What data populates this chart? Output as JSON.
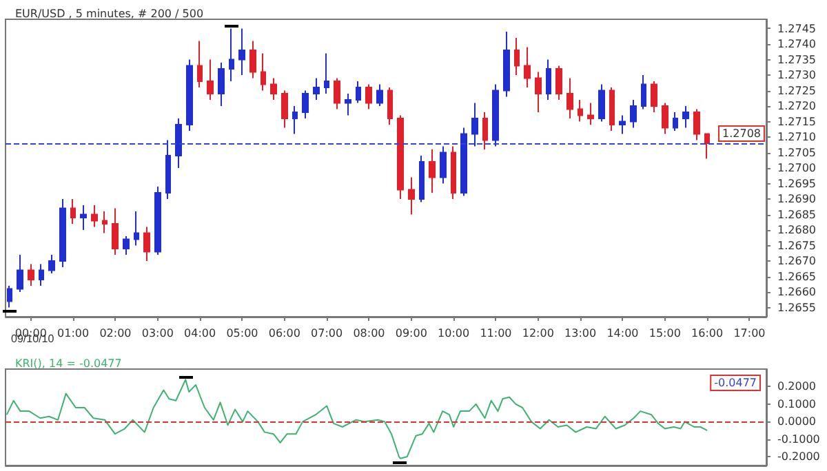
{
  "chart_data": [
    {
      "type": "candlestick",
      "title": "EUR/USD , 5 minutes, # 200 / 500",
      "x": [
        -0.5,
        -0.25,
        0,
        0.25,
        0.5,
        0.75,
        1,
        1.25,
        1.5,
        1.75,
        2,
        2.25,
        2.5,
        2.75,
        3,
        3.25,
        3.5,
        3.75,
        4,
        4.25,
        4.5,
        4.75,
        5,
        5.25,
        5.5,
        5.75,
        6,
        6.25,
        6.5,
        6.75,
        7,
        7.25,
        7.5,
        7.75,
        8,
        8.25,
        8.5,
        8.75,
        9,
        9.25,
        9.5,
        9.75,
        10,
        10.25,
        10.5,
        10.75,
        11,
        11.25,
        11.5,
        11.75,
        12,
        12.25,
        12.5,
        12.75,
        13,
        13.25,
        13.5,
        13.75,
        14,
        14.25,
        14.5,
        14.75,
        15,
        15.25,
        15.5,
        15.75,
        16
      ],
      "ohlc": [
        [
          1.2657,
          1.2662,
          1.2655,
          1.2661
        ],
        [
          1.2661,
          1.2672,
          1.266,
          1.2667
        ],
        [
          1.2667,
          1.2669,
          1.2662,
          1.2664
        ],
        [
          1.2664,
          1.2669,
          1.2662,
          1.2667
        ],
        [
          1.2667,
          1.2672,
          1.2666,
          1.267
        ],
        [
          1.267,
          1.269,
          1.2668,
          1.2687
        ],
        [
          1.2687,
          1.269,
          1.2682,
          1.2684
        ],
        [
          1.2684,
          1.2688,
          1.268,
          1.2685
        ],
        [
          1.2685,
          1.2688,
          1.2681,
          1.2683
        ],
        [
          1.2683,
          1.2686,
          1.2679,
          1.2682
        ],
        [
          1.2682,
          1.2687,
          1.2672,
          1.2674
        ],
        [
          1.2674,
          1.2678,
          1.2672,
          1.2677
        ],
        [
          1.2677,
          1.2686,
          1.2675,
          1.2679
        ],
        [
          1.2679,
          1.2681,
          1.267,
          1.2673
        ],
        [
          1.2673,
          1.2694,
          1.2672,
          1.2692
        ],
        [
          1.2692,
          1.2709,
          1.269,
          1.2704
        ],
        [
          1.2704,
          1.2716,
          1.27,
          1.2714
        ],
        [
          1.2714,
          1.2735,
          1.2712,
          1.2733
        ],
        [
          1.2733,
          1.2741,
          1.2726,
          1.2728
        ],
        [
          1.2728,
          1.2735,
          1.2722,
          1.2724
        ],
        [
          1.2724,
          1.2734,
          1.272,
          1.2732
        ],
        [
          1.2732,
          1.2745,
          1.2728,
          1.2735
        ],
        [
          1.2735,
          1.2745,
          1.273,
          1.2738
        ],
        [
          1.2738,
          1.2741,
          1.2729,
          1.2731
        ],
        [
          1.2731,
          1.2737,
          1.2725,
          1.2727
        ],
        [
          1.2727,
          1.2729,
          1.2722,
          1.2724
        ],
        [
          1.2724,
          1.2725,
          1.2713,
          1.2716
        ],
        [
          1.2716,
          1.272,
          1.2711,
          1.2718
        ],
        [
          1.2718,
          1.2725,
          1.2716,
          1.2724
        ],
        [
          1.2724,
          1.2729,
          1.2722,
          1.2726
        ],
        [
          1.2726,
          1.2737,
          1.2724,
          1.2728
        ],
        [
          1.2728,
          1.2729,
          1.2719,
          1.2721
        ],
        [
          1.2721,
          1.2724,
          1.2717,
          1.2722
        ],
        [
          1.2722,
          1.2728,
          1.2721,
          1.2726
        ],
        [
          1.2726,
          1.2727,
          1.2719,
          1.2721
        ],
        [
          1.2721,
          1.2727,
          1.272,
          1.2725
        ],
        [
          1.2725,
          1.2726,
          1.2714,
          1.2716
        ],
        [
          1.2716,
          1.2717,
          1.269,
          1.2693
        ],
        [
          1.2693,
          1.2697,
          1.2685,
          1.269
        ],
        [
          1.269,
          1.2704,
          1.2689,
          1.2702
        ],
        [
          1.2702,
          1.2706,
          1.2692,
          1.2697
        ],
        [
          1.2697,
          1.2707,
          1.2695,
          1.2705
        ],
        [
          1.2705,
          1.2707,
          1.269,
          1.2692
        ],
        [
          1.2692,
          1.2713,
          1.2691,
          1.2711
        ],
        [
          1.2711,
          1.2721,
          1.2707,
          1.2716
        ],
        [
          1.2716,
          1.2718,
          1.2706,
          1.2709
        ],
        [
          1.2709,
          1.2727,
          1.2707,
          1.2725
        ],
        [
          1.2725,
          1.2744,
          1.2723,
          1.2738
        ],
        [
          1.2738,
          1.2742,
          1.273,
          1.2733
        ],
        [
          1.2733,
          1.2739,
          1.2726,
          1.2729
        ],
        [
          1.2729,
          1.2731,
          1.2718,
          1.2724
        ],
        [
          1.2724,
          1.2735,
          1.2722,
          1.2732
        ],
        [
          1.2732,
          1.2733,
          1.2722,
          1.2724
        ],
        [
          1.2724,
          1.2729,
          1.2716,
          1.2719
        ],
        [
          1.2719,
          1.2722,
          1.2715,
          1.2717
        ],
        [
          1.2717,
          1.2721,
          1.2714,
          1.2716
        ],
        [
          1.2716,
          1.2727,
          1.2715,
          1.2725
        ],
        [
          1.2725,
          1.2726,
          1.2712,
          1.2714
        ],
        [
          1.2714,
          1.2717,
          1.2711,
          1.2715
        ],
        [
          1.2715,
          1.2722,
          1.2713,
          1.272
        ],
        [
          1.272,
          1.273,
          1.2719,
          1.2727
        ],
        [
          1.2727,
          1.2728,
          1.2718,
          1.272
        ],
        [
          1.272,
          1.2721,
          1.2711,
          1.2713
        ],
        [
          1.2713,
          1.2718,
          1.2712,
          1.2716
        ],
        [
          1.2716,
          1.272,
          1.2713,
          1.2718
        ],
        [
          1.2718,
          1.2719,
          1.2709,
          1.2711
        ],
        [
          1.2711,
          1.2711,
          1.2703,
          1.2708
        ]
      ],
      "colors": [
        "#1f2fd0",
        "#1f2fd0",
        "#e0202a",
        "#1f2fd0",
        "#1f2fd0",
        "#1f2fd0",
        "#e0202a",
        "#1f2fd0",
        "#e0202a",
        "#e0202a",
        "#e0202a",
        "#1f2fd0",
        "#1f2fd0",
        "#e0202a",
        "#1f2fd0",
        "#1f2fd0",
        "#1f2fd0",
        "#1f2fd0",
        "#e0202a",
        "#e0202a",
        "#1f2fd0",
        "#1f2fd0",
        "#1f2fd0",
        "#e0202a",
        "#e0202a",
        "#e0202a",
        "#e0202a",
        "#1f2fd0",
        "#1f2fd0",
        "#1f2fd0",
        "#1f2fd0",
        "#e0202a",
        "#1f2fd0",
        "#1f2fd0",
        "#e0202a",
        "#1f2fd0",
        "#e0202a",
        "#e0202a",
        "#e0202a",
        "#1f2fd0",
        "#e0202a",
        "#1f2fd0",
        "#e0202a",
        "#1f2fd0",
        "#1f2fd0",
        "#e0202a",
        "#1f2fd0",
        "#1f2fd0",
        "#e0202a",
        "#e0202a",
        "#e0202a",
        "#1f2fd0",
        "#e0202a",
        "#e0202a",
        "#e0202a",
        "#e0202a",
        "#1f2fd0",
        "#e0202a",
        "#1f2fd0",
        "#1f2fd0",
        "#1f2fd0",
        "#e0202a",
        "#e0202a",
        "#1f2fd0",
        "#1f2fd0",
        "#e0202a",
        "#e0202a"
      ],
      "xlim": [
        -0.6,
        17.4
      ],
      "xticks": [
        {
          "value": 0,
          "label": "00:00"
        },
        {
          "value": 1,
          "label": "01:00"
        },
        {
          "value": 2,
          "label": "02:00"
        },
        {
          "value": 3,
          "label": "03:00"
        },
        {
          "value": 4,
          "label": "04:00"
        },
        {
          "value": 5,
          "label": "05:00"
        },
        {
          "value": 6,
          "label": "06:00"
        },
        {
          "value": 7,
          "label": "07:00"
        },
        {
          "value": 8,
          "label": "08:00"
        },
        {
          "value": 9,
          "label": "09:00"
        },
        {
          "value": 10,
          "label": "10:00"
        },
        {
          "value": 11,
          "label": "11:00"
        },
        {
          "value": 12,
          "label": "12:00"
        },
        {
          "value": 13,
          "label": "13:00"
        },
        {
          "value": 14,
          "label": "14:00"
        },
        {
          "value": 15,
          "label": "15:00"
        },
        {
          "value": 16,
          "label": "16:00"
        },
        {
          "value": 17,
          "label": "17:00"
        }
      ],
      "ylim": [
        1.2652,
        1.2748
      ],
      "yticks": [
        1.2655,
        {
          "value": 1.266,
          "label": "1.2660"
        },
        1.2665,
        {
          "value": 1.267,
          "label": "1.2670"
        },
        1.2675,
        {
          "value": 1.268,
          "label": "1.2680"
        },
        1.2685,
        {
          "value": 1.269,
          "label": "1.2690"
        },
        1.2695,
        {
          "value": 1.27,
          "label": "1.2700"
        },
        1.2705,
        {
          "value": 1.271,
          "label": "1.2710"
        },
        1.2715,
        {
          "value": 1.272,
          "label": "1.2720"
        },
        1.2725,
        {
          "value": 1.273,
          "label": "1.2730"
        },
        1.2735,
        {
          "value": 1.274,
          "label": "1.2740"
        },
        1.2745
      ],
      "ref_lines": [
        {
          "axis": "y",
          "value": 1.2708,
          "label": "1.2708",
          "color": "#3344dd",
          "line_style": "dashed"
        }
      ],
      "annotations": [
        "09/10/10"
      ]
    },
    {
      "type": "line",
      "title": "KRI(), 14 = -0.0477",
      "color": "#3cb371",
      "marker": "none",
      "tick_labels": "y",
      "x": [
        -0.57,
        -0.41,
        -0.25,
        -0.04,
        0.22,
        0.43,
        0.64,
        0.83,
        1.06,
        1.27,
        1.48,
        1.75,
        1.99,
        2.22,
        2.41,
        2.69,
        2.9,
        3.14,
        3.27,
        3.43,
        3.66,
        3.74,
        3.9,
        4.11,
        4.32,
        4.48,
        4.66,
        4.83,
        5.01,
        5.13,
        5.37,
        5.53,
        5.74,
        5.9,
        6.06,
        6.27,
        6.43,
        6.74,
        7,
        7.16,
        7.37,
        7.69,
        7.9,
        8.21,
        8.37,
        8.53,
        8.71,
        8.74,
        8.9,
        9.11,
        9.26,
        9.42,
        9.53,
        9.74,
        9.9,
        10,
        10.16,
        10.37,
        10.53,
        10.74,
        10.89,
        11.05,
        11.16,
        11.32,
        11.47,
        11.63,
        11.84,
        12.05,
        12.26,
        12.47,
        12.68,
        12.89,
        13.15,
        13.37,
        13.58,
        13.84,
        14.05,
        14.26,
        14.42,
        14.68,
        14.84,
        15,
        15.21,
        15.37,
        15.47,
        15.69,
        15.84,
        16
      ],
      "values": [
        0.04,
        0.12,
        0.06,
        0.06,
        0.02,
        0.03,
        0.01,
        0.16,
        0.08,
        0.08,
        0.02,
        0.01,
        -0.07,
        -0.04,
        0.01,
        -0.06,
        0.08,
        0.18,
        0.13,
        0.12,
        0.24,
        0.17,
        0.21,
        0.08,
        0.01,
        0.11,
        -0.02,
        0.07,
        0,
        0.06,
        0,
        -0.06,
        -0.07,
        -0.12,
        -0.07,
        -0.07,
        0,
        0.04,
        0.09,
        -0.01,
        -0.03,
        0.01,
        0,
        0.01,
        0,
        -0.07,
        -0.2,
        -0.21,
        -0.2,
        -0.08,
        -0.07,
        -0.01,
        -0.06,
        0.06,
        0.04,
        -0.03,
        0.06,
        0.06,
        0.1,
        0.02,
        0.12,
        0.06,
        0.13,
        0.14,
        0.1,
        0.08,
        0,
        -0.04,
        0.01,
        -0.03,
        -0.02,
        -0.06,
        -0.03,
        -0.04,
        0.03,
        -0.04,
        -0.02,
        0.02,
        0.06,
        0.04,
        -0.01,
        -0.04,
        -0.03,
        -0.04,
        0,
        -0.03,
        -0.03,
        -0.05
      ],
      "xlim": [
        -0.6,
        17.4
      ],
      "ylim": [
        -0.25,
        0.3
      ],
      "yticks": [
        {
          "value": -0.2,
          "label": "-0.2000"
        },
        {
          "value": -0.1,
          "label": "-0.1000"
        },
        {
          "value": 0,
          "label": "0.0000"
        },
        {
          "value": 0.1,
          "label": "0.1000"
        },
        {
          "value": 0.2,
          "label": "0.2000"
        }
      ],
      "ref_lines": [
        {
          "axis": "y",
          "value": 0,
          "color": "#e03030",
          "line_style": "dashed"
        }
      ],
      "annotations": [
        "-0.0477"
      ]
    }
  ]
}
